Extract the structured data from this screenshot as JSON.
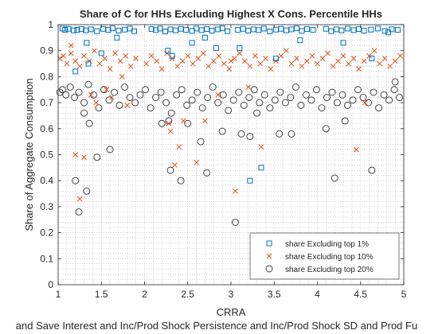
{
  "chart_data": {
    "type": "scatter",
    "title": "Share of C for HHs Excluding Highest X Cons. Percentile HHs",
    "xlabel": "CRRA",
    "ylabel": "Share of Aggregate Consumption",
    "bottom_caption": "and Save Interest and Inc/Prod Shock Persistence and Inc/Prod Shock SD and Prod Fu",
    "xlim": [
      1,
      5
    ],
    "ylim": [
      0,
      1
    ],
    "xticks": [
      1,
      1.5,
      2,
      2.5,
      3,
      3.5,
      4,
      4.5,
      5
    ],
    "xtick_labels": [
      "1",
      "1.5",
      "2",
      "2.5",
      "3",
      "3.5",
      "4",
      "4.5",
      "5"
    ],
    "yticks": [
      0,
      0.1,
      0.2,
      0.3,
      0.4,
      0.5,
      0.6,
      0.7,
      0.8,
      0.9,
      1
    ],
    "ytick_labels": [
      "0",
      "0.1",
      "0.2",
      "0.3",
      "0.4",
      "0.5",
      "0.6",
      "0.7",
      "0.8",
      "0.9",
      "1"
    ],
    "grid": "minor-dotted",
    "legend_position": "bottom-right",
    "series": [
      {
        "name": "share Excluding top 1%",
        "marker": "square",
        "color": "#0072BD",
        "x": [
          1.05,
          1.08,
          1.12,
          1.18,
          1.22,
          1.27,
          1.32,
          1.38,
          1.45,
          1.52,
          1.58,
          1.63,
          1.7,
          1.77,
          1.83,
          1.88,
          2.08,
          2.13,
          2.18,
          2.24,
          2.3,
          2.36,
          2.42,
          2.48,
          2.55,
          2.6,
          2.66,
          2.72,
          2.78,
          2.85,
          2.9,
          2.96,
          3.08,
          3.14,
          3.2,
          3.26,
          3.32,
          3.38,
          3.45,
          3.52,
          3.58,
          3.64,
          3.7,
          3.76,
          3.82,
          3.88,
          3.95,
          4.1,
          4.16,
          4.22,
          4.28,
          4.35,
          4.42,
          4.48,
          4.54,
          4.62,
          4.7,
          4.78,
          4.86,
          4.93,
          1.2,
          1.33,
          1.35,
          1.5,
          1.68,
          2.27,
          2.32,
          2.55,
          2.7,
          2.83,
          3.1,
          3.22,
          3.35,
          3.52,
          3.8,
          4.3,
          4.63,
          4.82
        ],
        "y": [
          0.985,
          0.98,
          0.984,
          0.978,
          0.98,
          0.983,
          0.978,
          0.982,
          0.975,
          0.984,
          0.98,
          0.986,
          0.977,
          0.981,
          0.985,
          0.975,
          0.983,
          0.979,
          0.985,
          0.974,
          0.982,
          0.978,
          0.984,
          0.98,
          0.976,
          0.985,
          0.979,
          0.983,
          0.977,
          0.982,
          0.986,
          0.975,
          0.98,
          0.984,
          0.977,
          0.982,
          0.979,
          0.985,
          0.974,
          0.981,
          0.984,
          0.978,
          0.982,
          0.986,
          0.976,
          0.983,
          0.98,
          0.984,
          0.975,
          0.982,
          0.978,
          0.985,
          0.979,
          0.983,
          0.977,
          0.981,
          0.985,
          0.976,
          0.982,
          0.98,
          0.82,
          0.93,
          0.85,
          0.89,
          0.95,
          0.9,
          0.88,
          0.93,
          0.95,
          0.91,
          0.91,
          0.4,
          0.45,
          0.87,
          0.94,
          0.93,
          0.87,
          0.97
        ]
      },
      {
        "name": "share Excluding top 10%",
        "marker": "x",
        "color": "#D95319",
        "x": [
          1.02,
          1.06,
          1.1,
          1.15,
          1.2,
          1.25,
          1.3,
          1.36,
          1.42,
          1.48,
          1.54,
          1.6,
          1.66,
          1.72,
          1.78,
          1.84,
          1.9,
          2.02,
          2.08,
          2.14,
          2.2,
          2.26,
          2.32,
          2.38,
          2.44,
          2.5,
          2.56,
          2.62,
          2.68,
          2.74,
          2.8,
          2.86,
          2.92,
          2.98,
          3.04,
          3.1,
          3.16,
          3.22,
          3.28,
          3.34,
          3.4,
          3.46,
          3.52,
          3.58,
          3.64,
          3.7,
          3.76,
          3.82,
          3.88,
          3.94,
          4.0,
          4.06,
          4.12,
          4.18,
          4.24,
          4.3,
          4.36,
          4.42,
          4.48,
          4.54,
          4.6,
          4.66,
          4.72,
          4.78,
          4.84,
          4.9,
          4.96,
          1.2,
          1.25,
          1.3,
          1.38,
          1.44,
          1.56,
          1.62,
          1.74,
          1.8,
          2.3,
          2.35,
          2.4,
          2.45,
          2.6,
          2.7,
          2.85,
          3.05,
          3.2,
          3.35,
          4.45,
          4.55,
          1.15,
          2.28,
          3.0
        ],
        "y": [
          0.87,
          0.88,
          0.85,
          0.89,
          0.86,
          0.84,
          0.88,
          0.86,
          0.9,
          0.85,
          0.87,
          0.83,
          0.89,
          0.86,
          0.88,
          0.84,
          0.87,
          0.85,
          0.88,
          0.86,
          0.83,
          0.89,
          0.87,
          0.84,
          0.86,
          0.88,
          0.85,
          0.87,
          0.89,
          0.84,
          0.86,
          0.88,
          0.85,
          0.83,
          0.87,
          0.89,
          0.86,
          0.84,
          0.88,
          0.85,
          0.87,
          0.83,
          0.86,
          0.88,
          0.9,
          0.85,
          0.87,
          0.84,
          0.86,
          0.88,
          0.85,
          0.87,
          0.89,
          0.84,
          0.86,
          0.88,
          0.85,
          0.87,
          0.83,
          0.86,
          0.88,
          0.9,
          0.85,
          0.87,
          0.84,
          0.86,
          0.88,
          0.5,
          0.33,
          0.49,
          0.73,
          0.7,
          0.75,
          0.72,
          0.8,
          0.69,
          0.59,
          0.46,
          0.53,
          0.63,
          0.47,
          0.63,
          0.73,
          0.36,
          0.76,
          0.53,
          0.52,
          0.7,
          0.92,
          0.62,
          0.86
        ]
      },
      {
        "name": "share Excluding top 20%",
        "marker": "circle",
        "color": "#333333",
        "x": [
          1.02,
          1.05,
          1.09,
          1.14,
          1.19,
          1.24,
          1.3,
          1.35,
          1.41,
          1.47,
          1.53,
          1.59,
          1.65,
          1.71,
          1.77,
          1.83,
          1.89,
          1.95,
          2.01,
          2.07,
          2.13,
          2.19,
          2.25,
          2.31,
          2.37,
          2.43,
          2.49,
          2.55,
          2.61,
          2.67,
          2.73,
          2.79,
          2.85,
          2.91,
          2.97,
          3.03,
          3.09,
          3.15,
          3.21,
          3.27,
          3.33,
          3.39,
          3.45,
          3.51,
          3.57,
          3.63,
          3.69,
          3.75,
          3.81,
          3.87,
          3.93,
          3.99,
          4.05,
          4.11,
          4.17,
          4.23,
          4.29,
          4.35,
          4.41,
          4.47,
          4.53,
          4.59,
          4.65,
          4.71,
          4.77,
          4.83,
          4.89,
          4.95,
          1.2,
          1.24,
          1.33,
          1.45,
          1.6,
          2.3,
          2.42,
          2.65,
          2.72,
          3.05,
          3.12,
          3.22,
          3.56,
          4.32,
          4.63,
          4.9,
          1.36,
          2.2,
          2.5,
          2.9,
          3.7,
          4.1,
          1.3,
          2.28,
          3.3,
          4.2
        ],
        "y": [
          0.74,
          0.75,
          0.73,
          0.76,
          0.72,
          0.74,
          0.7,
          0.77,
          0.73,
          0.68,
          0.75,
          0.71,
          0.74,
          0.69,
          0.76,
          0.72,
          0.7,
          0.73,
          0.75,
          0.68,
          0.72,
          0.74,
          0.7,
          0.66,
          0.73,
          0.75,
          0.69,
          0.71,
          0.74,
          0.68,
          0.72,
          0.76,
          0.7,
          0.73,
          0.67,
          0.71,
          0.74,
          0.69,
          0.72,
          0.75,
          0.7,
          0.73,
          0.68,
          0.71,
          0.74,
          0.7,
          0.72,
          0.76,
          0.69,
          0.73,
          0.71,
          0.75,
          0.68,
          0.72,
          0.74,
          0.7,
          0.73,
          0.69,
          0.71,
          0.75,
          0.72,
          0.7,
          0.74,
          0.68,
          0.73,
          0.71,
          0.75,
          0.72,
          0.4,
          0.28,
          0.36,
          0.49,
          0.52,
          0.44,
          0.4,
          0.55,
          0.43,
          0.24,
          0.58,
          0.57,
          0.58,
          0.63,
          0.44,
          0.78,
          0.62,
          0.62,
          0.62,
          0.59,
          0.58,
          0.6,
          0.66,
          0.63,
          0.66,
          0.41
        ]
      }
    ]
  }
}
